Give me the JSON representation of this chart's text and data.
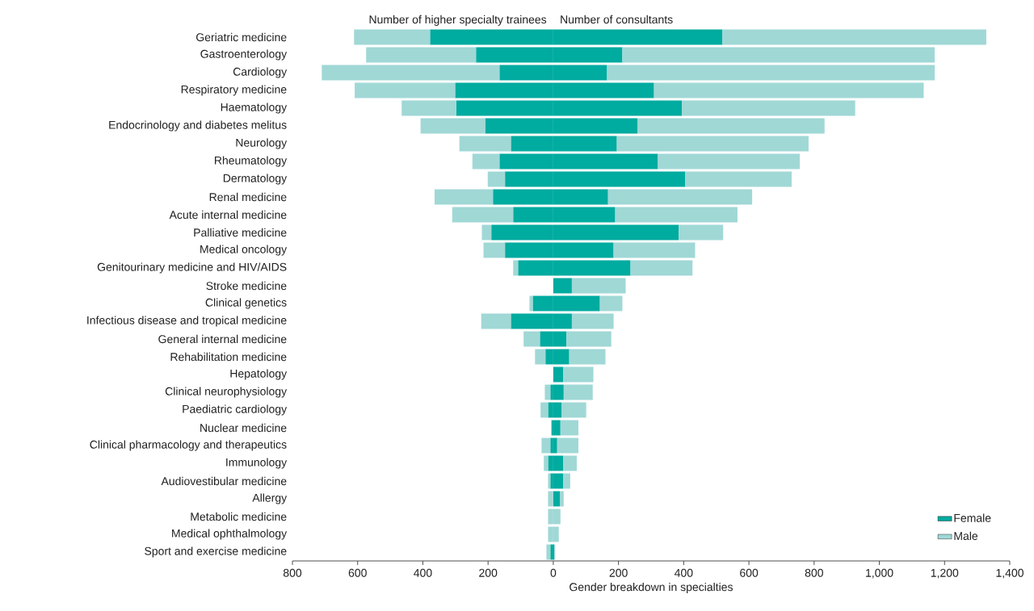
{
  "chart_data": {
    "type": "bar",
    "orientation": "horizontal",
    "stacked": true,
    "xlabel": "Gender breakdown in specialties",
    "annotations": [
      "Number of higher specialty trainees",
      "Number of consultants"
    ],
    "categories": [
      "Geriatric medicine",
      "Gastroenterology",
      "Cardiology",
      "Respiratory medicine",
      "Haematology",
      "Endocrinology and diabetes melitus",
      "Neurology",
      "Rheumatology",
      "Dermatology",
      "Renal medicine",
      "Acute internal medicine",
      "Palliative medicine",
      "Medical oncology",
      "Genitourinary medicine and HIV/AIDS",
      "Stroke medicine",
      "Clinical genetics",
      "Infectious disease and tropical medicine",
      "General internal medicine",
      "Rehabilitation medicine",
      "Hepatology",
      "Clinical neurophysiology",
      "Paediatric cardiology",
      "Nuclear medicine",
      "Clinical pharmacology and therapeutics",
      "Immunology",
      "Audiovestibular medicine",
      "Allergy",
      "Metabolic medicine",
      "Medical ophthalmology",
      "Sport and exercise medicine"
    ],
    "series": [
      {
        "name": "Female",
        "color": "#00ab9f",
        "values": [
          519,
          212,
          165,
          309,
          395,
          259,
          195,
          321,
          405,
          168,
          190,
          385,
          185,
          237,
          57,
          143,
          57,
          40,
          49,
          30,
          32,
          25,
          22,
          12,
          30,
          30,
          20,
          0,
          0,
          3
        ]
      },
      {
        "name": "Male",
        "color": "#a0d8d6",
        "values": [
          809,
          958,
          1005,
          827,
          531,
          573,
          588,
          435,
          326,
          442,
          375,
          136,
          250,
          190,
          165,
          69,
          128,
          138,
          111,
          93,
          89,
          76,
          55,
          65,
          42,
          22,
          12,
          22,
          17,
          3
        ]
      },
      {
        "color": "#00ab9f",
        "values": [
          -378,
          -237,
          -165,
          -301,
          -298,
          -209,
          -130,
          -165,
          -148,
          -185,
          -123,
          -190,
          -148,
          -108,
          0,
          -63,
          -130,
          -41,
          -24,
          0,
          -9,
          -16,
          -5,
          -9,
          -16,
          -9,
          0,
          0,
          0,
          -9
        ]
      },
      {
        "color": "#a0d8d6",
        "values": [
          -233,
          -337,
          -545,
          -308,
          -167,
          -198,
          -158,
          -83,
          -53,
          -179,
          -187,
          -29,
          -66,
          -15,
          0,
          -10,
          -91,
          -50,
          -32,
          0,
          -17,
          -23,
          -2,
          -27,
          -13,
          -7,
          -16,
          -16,
          -16,
          -12
        ]
      }
    ],
    "xlim": [
      -800,
      1400
    ],
    "xticks": [
      {
        "value": -800,
        "label": "800"
      },
      {
        "value": -600,
        "label": "600"
      },
      {
        "value": -400,
        "label": "400"
      },
      {
        "value": -200,
        "label": "200"
      },
      0,
      200,
      400,
      600,
      800,
      {
        "value": 1000,
        "label": "1,000"
      },
      {
        "value": 1200,
        "label": "1,200"
      },
      {
        "value": 1400,
        "label": "1,400"
      }
    ],
    "legend": "bottom right"
  }
}
